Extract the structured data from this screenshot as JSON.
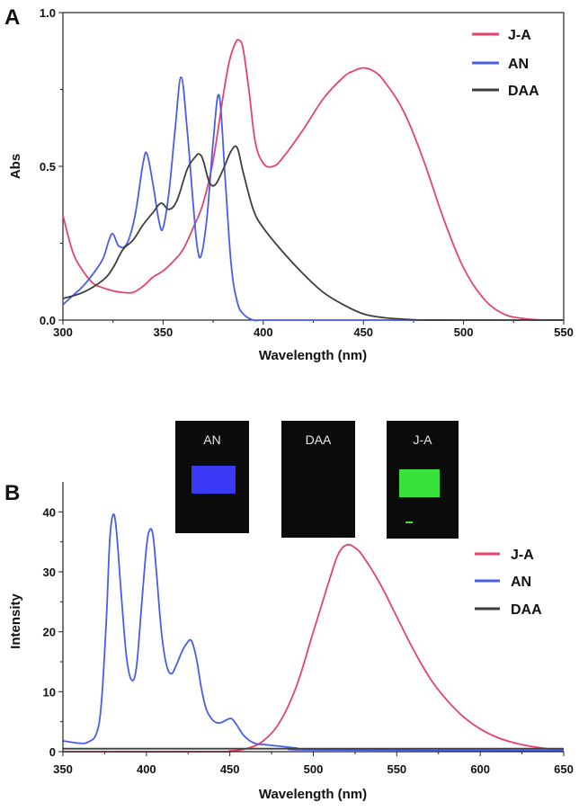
{
  "chart_data": [
    {
      "panel": "A",
      "type": "line",
      "xlabel": "Wavelength (nm)",
      "ylabel": "Abs",
      "xlim": [
        300,
        550
      ],
      "ylim": [
        0,
        1.0
      ],
      "xticks": [
        300,
        350,
        400,
        450,
        500,
        550
      ],
      "xtick_labels": [
        "300",
        "350",
        "400",
        "450",
        "500",
        "550"
      ],
      "yticks": [
        0,
        0.5,
        1.0
      ],
      "ytick_labels": [
        "0.0",
        "0.5",
        "1.0"
      ],
      "legend": {
        "placement": "top-right"
      },
      "series": [
        {
          "name": "J-A",
          "color": "#e8426a",
          "x": [
            300,
            305,
            310,
            315,
            320,
            325,
            330,
            335,
            340,
            345,
            350,
            355,
            360,
            365,
            370,
            375,
            380,
            383,
            386,
            388,
            390,
            393,
            396,
            400,
            405,
            410,
            420,
            430,
            440,
            445,
            450,
            455,
            460,
            470,
            480,
            490,
            500,
            510,
            520,
            530,
            540,
            550
          ],
          "y": [
            0.34,
            0.22,
            0.16,
            0.12,
            0.105,
            0.095,
            0.09,
            0.09,
            0.11,
            0.14,
            0.16,
            0.19,
            0.23,
            0.3,
            0.38,
            0.52,
            0.73,
            0.84,
            0.9,
            0.91,
            0.88,
            0.74,
            0.58,
            0.51,
            0.5,
            0.53,
            0.62,
            0.72,
            0.79,
            0.81,
            0.82,
            0.81,
            0.78,
            0.68,
            0.52,
            0.33,
            0.17,
            0.07,
            0.02,
            0.005,
            0.0,
            0.0
          ]
        },
        {
          "name": "AN",
          "color": "#4a5cf0",
          "x": [
            300,
            305,
            310,
            315,
            320,
            323,
            325,
            328,
            332,
            336,
            340,
            342,
            345,
            348,
            350,
            353,
            356,
            359,
            362,
            365,
            367,
            369,
            372,
            375,
            378,
            381,
            384,
            387,
            390,
            395,
            400,
            420,
            450,
            500,
            550
          ],
          "y": [
            0.05,
            0.08,
            0.11,
            0.15,
            0.2,
            0.26,
            0.28,
            0.24,
            0.25,
            0.34,
            0.51,
            0.54,
            0.44,
            0.32,
            0.3,
            0.42,
            0.62,
            0.79,
            0.62,
            0.38,
            0.24,
            0.21,
            0.34,
            0.58,
            0.73,
            0.46,
            0.18,
            0.06,
            0.02,
            0.0,
            0.0,
            0.0,
            0.0,
            0.0,
            0.0
          ]
        },
        {
          "name": "DAA",
          "color": "#3e3e3e",
          "x": [
            300,
            310,
            320,
            325,
            330,
            335,
            340,
            345,
            349,
            353,
            357,
            362,
            366,
            368,
            370,
            373,
            376,
            380,
            384,
            387,
            390,
            395,
            400,
            410,
            420,
            430,
            440,
            450,
            460,
            470,
            480,
            500,
            550
          ],
          "y": [
            0.07,
            0.09,
            0.13,
            0.17,
            0.23,
            0.26,
            0.31,
            0.35,
            0.38,
            0.36,
            0.39,
            0.49,
            0.53,
            0.54,
            0.52,
            0.45,
            0.44,
            0.49,
            0.55,
            0.56,
            0.48,
            0.36,
            0.3,
            0.22,
            0.15,
            0.09,
            0.05,
            0.02,
            0.008,
            0.003,
            0.0,
            0.0,
            0.0
          ]
        }
      ]
    },
    {
      "panel": "B",
      "type": "line",
      "xlabel": "Wavelength (nm)",
      "ylabel": "Intensity",
      "xlim": [
        350,
        650
      ],
      "ylim": [
        0,
        45
      ],
      "xticks": [
        350,
        400,
        450,
        500,
        550,
        600,
        650
      ],
      "xtick_labels": [
        "350",
        "400",
        "450",
        "500",
        "550",
        "600",
        "650"
      ],
      "yticks": [
        0,
        10,
        20,
        30,
        40
      ],
      "ytick_labels": [
        "0",
        "10",
        "20",
        "30",
        "40"
      ],
      "legend": {
        "placement": "right"
      },
      "series": [
        {
          "name": "J-A",
          "color": "#e8426a",
          "x": [
            350,
            440,
            450,
            460,
            470,
            480,
            490,
            500,
            510,
            515,
            520,
            525,
            530,
            540,
            550,
            560,
            570,
            580,
            590,
            600,
            610,
            620,
            630,
            640,
            650
          ],
          "y": [
            0,
            0,
            0.1,
            0.5,
            1.8,
            5.0,
            11,
            20,
            29,
            33,
            34.5,
            34,
            32.5,
            28,
            22.5,
            17,
            12.2,
            8.6,
            5.8,
            3.8,
            2.4,
            1.5,
            0.9,
            0.5,
            0.3
          ]
        },
        {
          "name": "AN",
          "color": "#4a5cf0",
          "x": [
            350,
            360,
            365,
            370,
            373,
            376,
            378,
            380,
            382,
            385,
            388,
            391,
            394,
            397,
            400,
            402,
            404,
            406,
            409,
            412,
            415,
            418,
            421,
            424,
            427,
            430,
            433,
            436,
            440,
            444,
            448,
            451,
            454,
            458,
            462,
            466,
            470,
            480,
            490,
            500,
            650
          ],
          "y": [
            1.8,
            1.4,
            1.6,
            3,
            8,
            22,
            35,
            39.5,
            37,
            26,
            16,
            12,
            14,
            24,
            34,
            37,
            36,
            30,
            20,
            14.5,
            13,
            14.5,
            16.5,
            18,
            18.5,
            15.5,
            10.5,
            7,
            5.2,
            4.8,
            5.3,
            5.5,
            4.5,
            2.8,
            1.8,
            1.3,
            1.2,
            0.9,
            0.6,
            0.3,
            0.2
          ]
        },
        {
          "name": "DAA",
          "color": "#3e3e3e",
          "x": [
            350,
            650
          ],
          "y": [
            0.5,
            0.5
          ]
        }
      ]
    }
  ],
  "panel_labels": {
    "a": "A",
    "b": "B"
  },
  "inset_photos": [
    {
      "label": "AN",
      "glow_color": "#3a39f5"
    },
    {
      "label": "DAA",
      "glow_color": ""
    },
    {
      "label": "J-A",
      "glow_color": "#39e23a"
    }
  ]
}
